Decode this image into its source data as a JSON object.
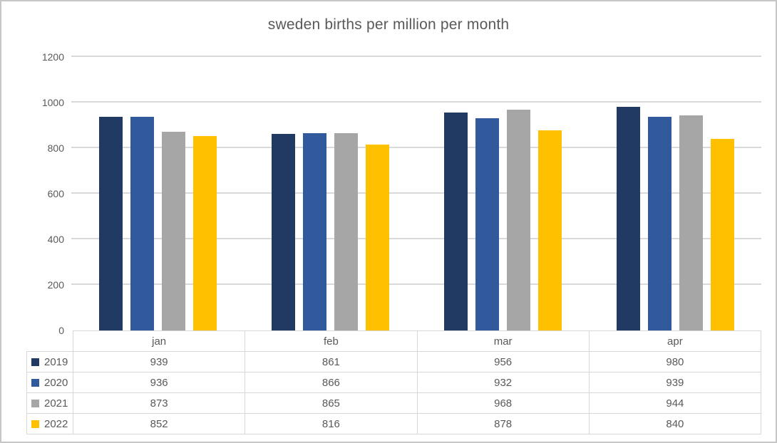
{
  "chart_data": {
    "type": "bar",
    "title": "sweden births per million per month",
    "categories": [
      "jan",
      "feb",
      "mar",
      "apr"
    ],
    "series": [
      {
        "name": "2019",
        "color": "#203A63",
        "values": [
          939,
          861,
          956,
          980
        ]
      },
      {
        "name": "2020",
        "color": "#315A9C",
        "values": [
          936,
          866,
          932,
          939
        ]
      },
      {
        "name": "2021",
        "color": "#A6A6A6",
        "values": [
          873,
          865,
          968,
          944
        ]
      },
      {
        "name": "2022",
        "color": "#FFC000",
        "values": [
          852,
          816,
          878,
          840
        ]
      }
    ],
    "xlabel": "",
    "ylabel": "",
    "ylim": [
      0,
      1200
    ],
    "yticks": [
      0,
      200,
      400,
      600,
      800,
      1000,
      1200
    ],
    "grid": true,
    "grid_color": "#D9D9D9",
    "text_color": "#595959",
    "legend_position": "data-table-left",
    "data_table_shown": true
  }
}
